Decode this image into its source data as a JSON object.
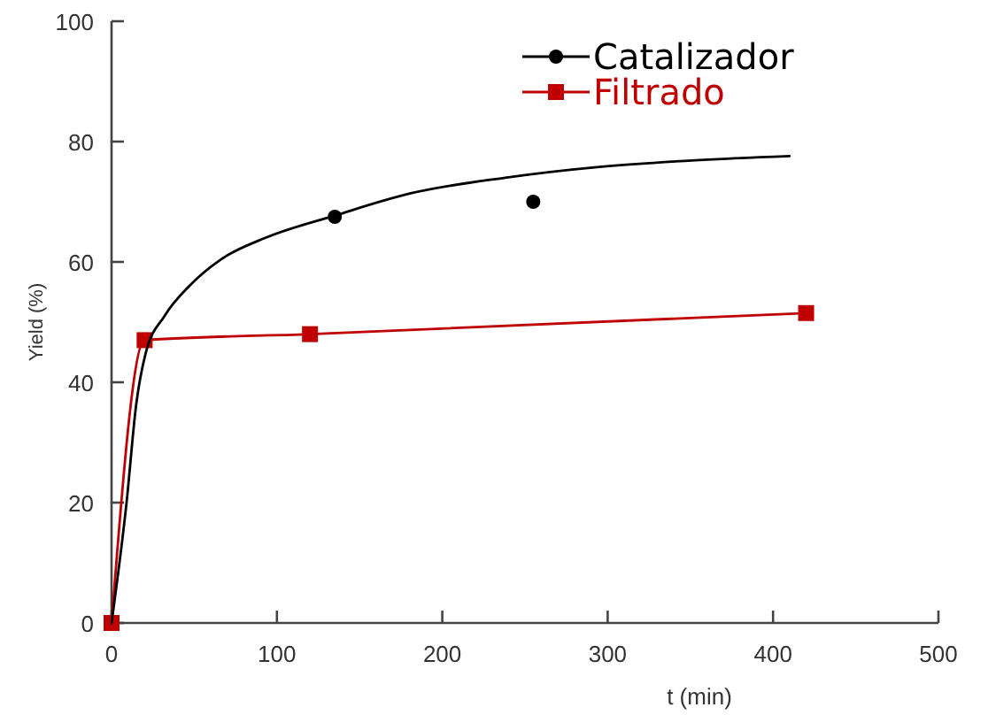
{
  "chart_data": {
    "type": "scatter",
    "xlabel": "t (min)",
    "ylabel": "Yield (%)",
    "xlim": [
      0,
      500
    ],
    "ylim": [
      0,
      100
    ],
    "xticks": [
      0,
      100,
      200,
      300,
      400,
      500
    ],
    "yticks": [
      0,
      20,
      40,
      60,
      80,
      100
    ],
    "grid": false,
    "legend": "top right",
    "series": [
      {
        "name": "Catalizador",
        "color": "#000000",
        "marker": "circle",
        "x": [
          135,
          255
        ],
        "values": [
          67.5,
          70
        ]
      },
      {
        "name": "Filtrado",
        "type": "line",
        "color": "#c00000",
        "marker": "square",
        "x": [
          0,
          20,
          120,
          420
        ],
        "values": [
          0,
          47,
          48,
          51.5
        ]
      },
      {
        "type": "line",
        "color": "#000000",
        "marker": "none",
        "x": [
          0,
          9,
          15,
          20.6,
          32,
          47,
          66,
          93,
          135,
          181,
          238,
          295,
          353,
          410
        ],
        "values": [
          0,
          19.8,
          36.5,
          44.8,
          51,
          56,
          60.4,
          64,
          67.7,
          71.4,
          74,
          75.8,
          76.9,
          77.6
        ]
      }
    ]
  }
}
